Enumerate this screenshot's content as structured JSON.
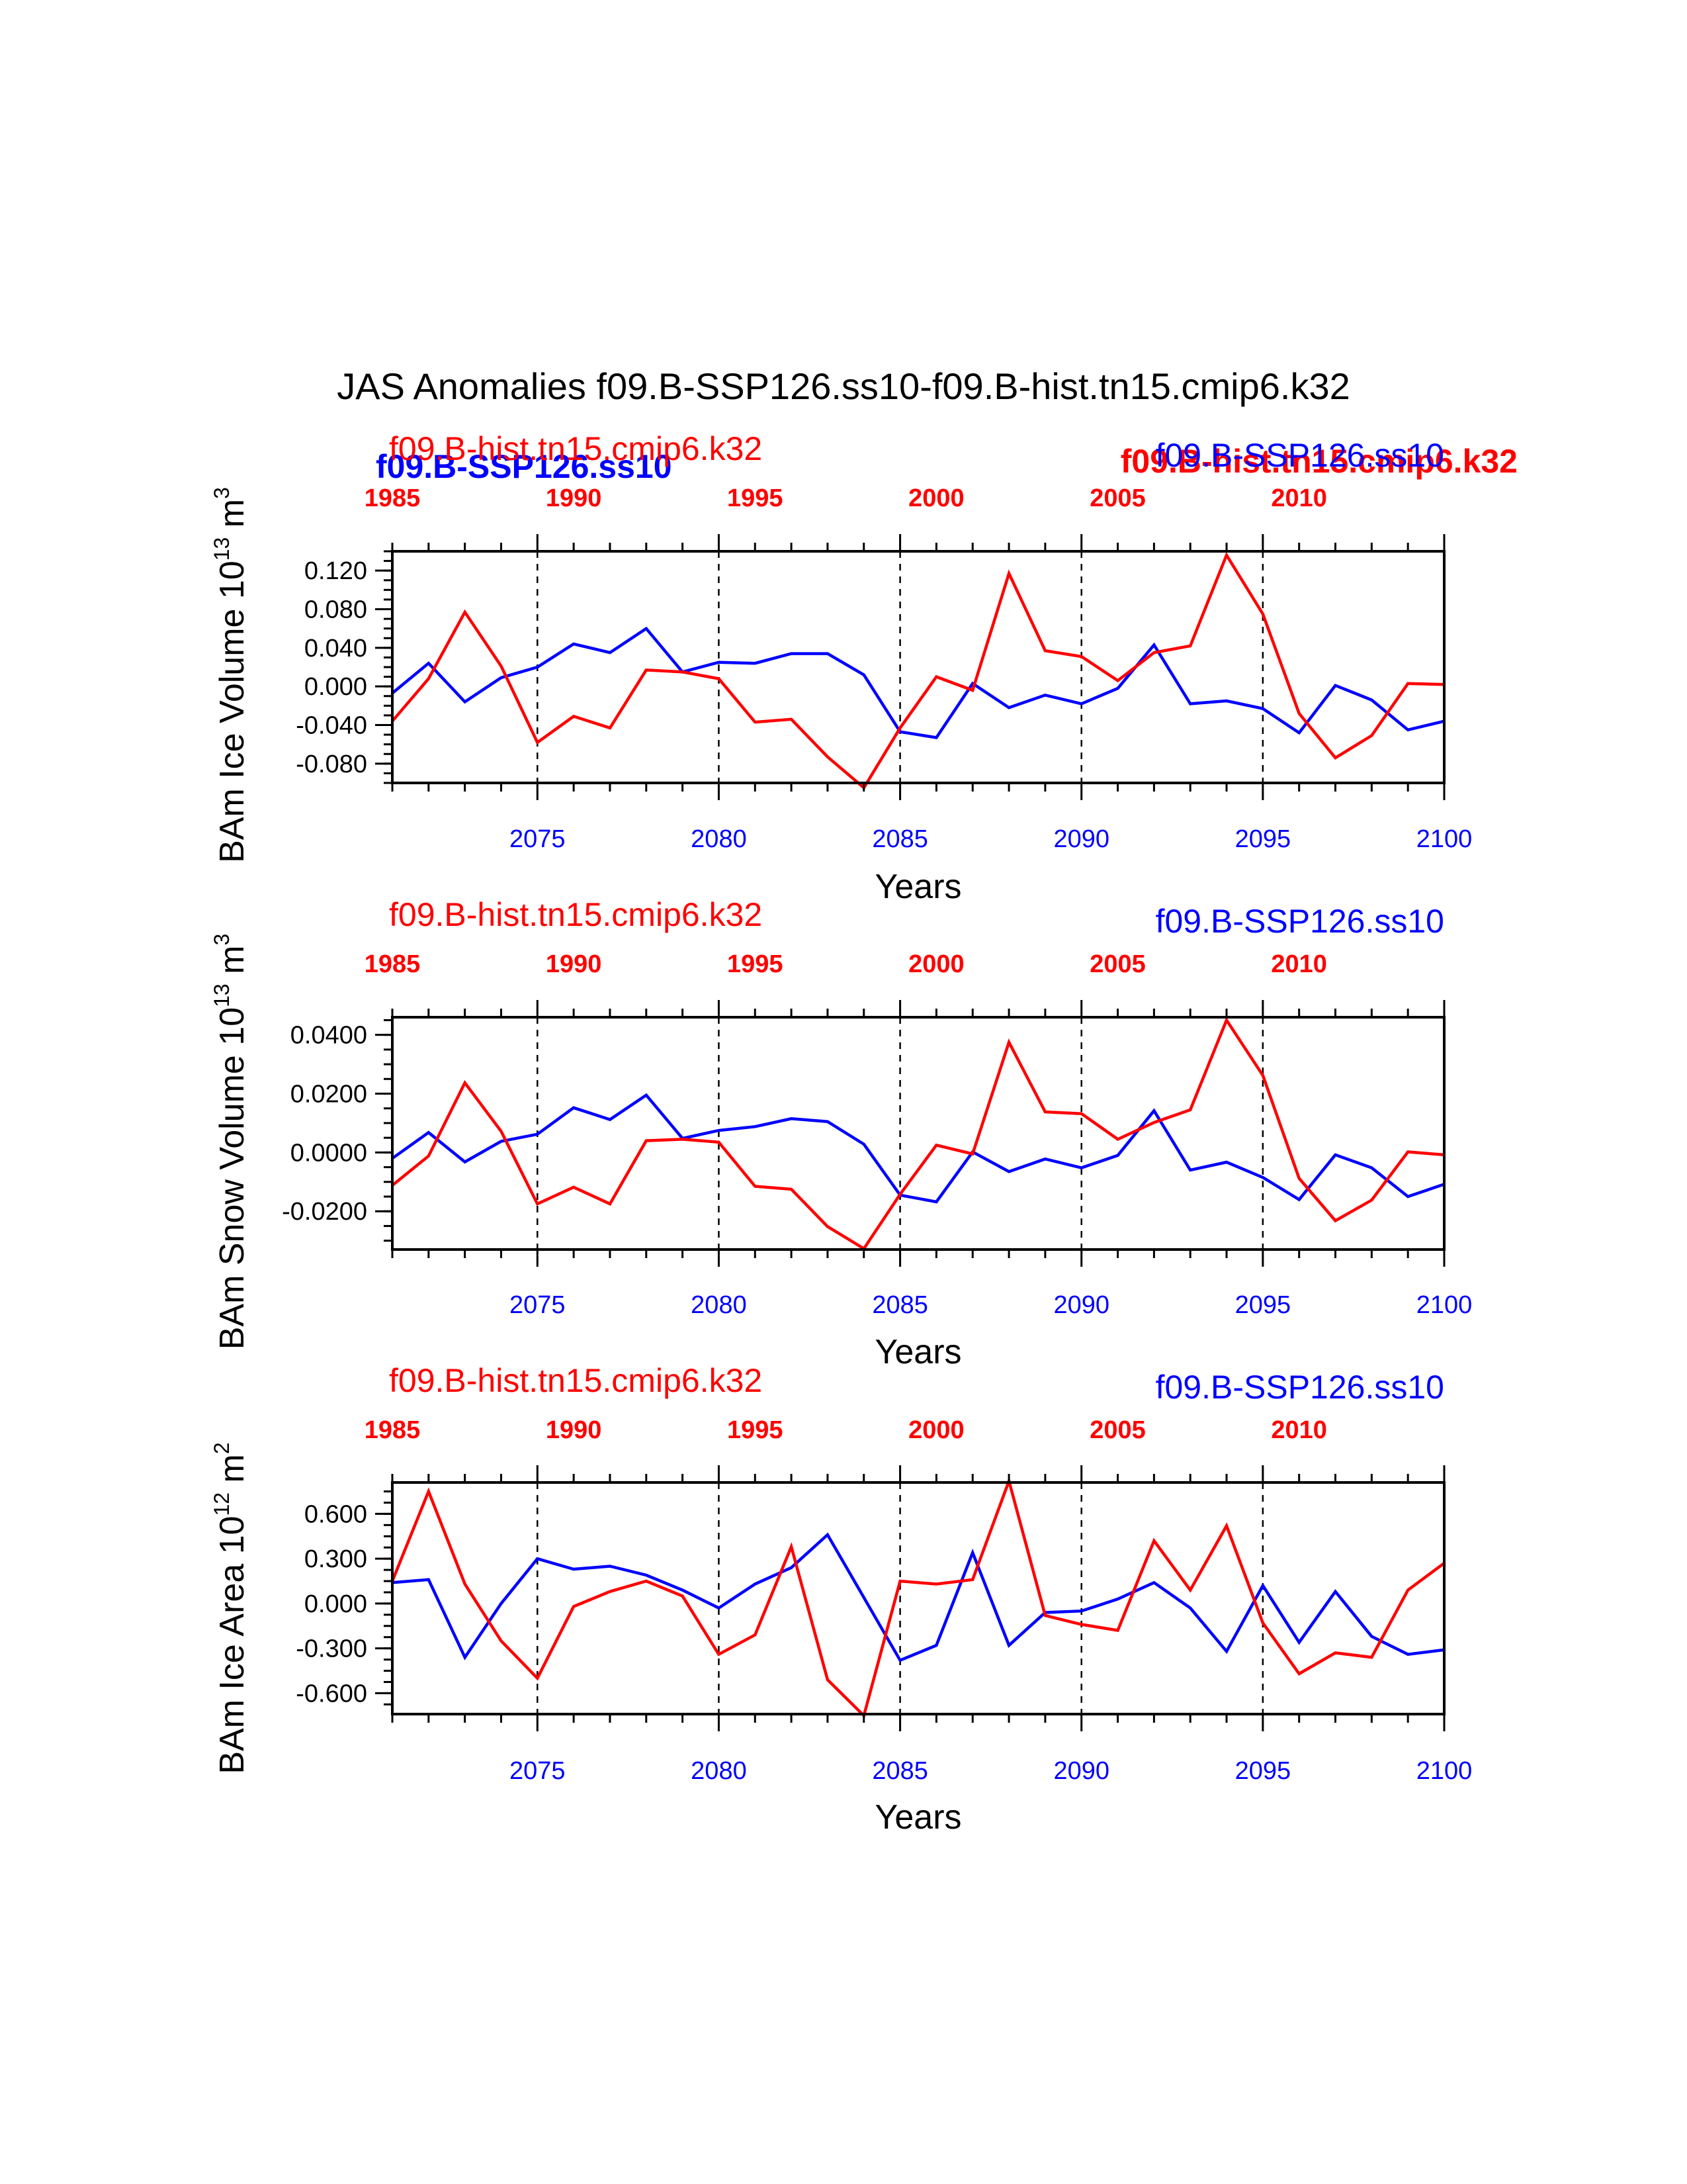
{
  "title": "JAS Anomalies f09.B-SSP126.ss10-f09.B-hist.tn15.cmip6.k32",
  "colors": {
    "case1": "#0000ff",
    "case2": "#ff0000",
    "axis": "#000000"
  },
  "overlay_labels": {
    "case1_bold": "f09.B-SSP126.ss10",
    "case2_bold": "f09.B-hist.tn15.cmip6.k32"
  },
  "chart_data": [
    {
      "type": "line",
      "ylabel": "BAm Ice Volume 10",
      "ylabel_exp": "13",
      "ylabel_unit": " m",
      "ylabel_unit_exp": "3",
      "xlabel": "Years",
      "legend_left": "f09.B-hist.tn15.cmip6.k32",
      "legend_right": "f09.B-SSP126.ss10",
      "xlim": [
        2071,
        2100
      ],
      "ylim": [
        -0.1,
        0.14
      ],
      "ytick_values": [
        -0.08,
        -0.04,
        0.0,
        0.04,
        0.08,
        0.12
      ],
      "ytick_labels": [
        "-0.080",
        "-0.040",
        "0.000",
        "0.040",
        "0.080",
        "0.120"
      ],
      "ytick_minor_step": 0.01,
      "bottom_tick_values": [
        2075,
        2080,
        2085,
        2090,
        2095,
        2100
      ],
      "bottom_tick_labels": [
        "2075",
        "2080",
        "2085",
        "2090",
        "2095",
        "2100"
      ],
      "top_tick_labels": [
        "1985",
        "1990",
        "1995",
        "2000",
        "2005",
        "2010"
      ],
      "dashed_x": [
        2075,
        2080,
        2085,
        2090,
        2095
      ],
      "x": [
        2071,
        2072,
        2073,
        2074,
        2075,
        2076,
        2077,
        2078,
        2079,
        2080,
        2081,
        2082,
        2083,
        2084,
        2085,
        2086,
        2087,
        2088,
        2089,
        2090,
        2091,
        2092,
        2093,
        2094,
        2095,
        2096,
        2097,
        2098,
        2099,
        2100
      ],
      "series": [
        {
          "name": "f09.B-SSP126.ss10",
          "color": "#0000ff",
          "values": [
            -0.007,
            0.024,
            -0.016,
            0.009,
            0.02,
            0.044,
            0.035,
            0.06,
            0.015,
            0.025,
            0.024,
            0.034,
            0.034,
            0.012,
            -0.047,
            -0.053,
            0.003,
            -0.022,
            -0.009,
            -0.018,
            -0.002,
            0.043,
            -0.018,
            -0.015,
            -0.023,
            -0.048,
            0.001,
            -0.014,
            -0.045,
            -0.036
          ]
        },
        {
          "name": "f09.B-hist.tn15.cmip6.k32",
          "color": "#ff0000",
          "values": [
            -0.036,
            0.008,
            0.077,
            0.021,
            -0.058,
            -0.031,
            -0.043,
            0.017,
            0.015,
            0.008,
            -0.037,
            -0.034,
            -0.073,
            -0.105,
            -0.043,
            0.01,
            -0.004,
            0.117,
            0.037,
            0.031,
            0.006,
            0.035,
            0.042,
            0.136,
            0.075,
            -0.028,
            -0.074,
            -0.051,
            0.003,
            0.002
          ]
        }
      ]
    },
    {
      "type": "line",
      "ylabel": "BAm Snow Volume 10",
      "ylabel_exp": "13",
      "ylabel_unit": " m",
      "ylabel_unit_exp": "3",
      "xlabel": "Years",
      "legend_left": "f09.B-hist.tn15.cmip6.k32",
      "legend_right": "f09.B-SSP126.ss10",
      "xlim": [
        2071,
        2100
      ],
      "ylim": [
        -0.033,
        0.046
      ],
      "ytick_values": [
        -0.02,
        0.0,
        0.02,
        0.04
      ],
      "ytick_labels": [
        "-0.0200",
        "0.0000",
        "0.0200",
        "0.0400"
      ],
      "ytick_minor_step": 0.005,
      "bottom_tick_values": [
        2075,
        2080,
        2085,
        2090,
        2095,
        2100
      ],
      "bottom_tick_labels": [
        "2075",
        "2080",
        "2085",
        "2090",
        "2095",
        "2100"
      ],
      "top_tick_labels": [
        "1985",
        "1990",
        "1995",
        "2000",
        "2005",
        "2010"
      ],
      "dashed_x": [
        2075,
        2080,
        2085,
        2090,
        2095
      ],
      "x": [
        2071,
        2072,
        2073,
        2074,
        2075,
        2076,
        2077,
        2078,
        2079,
        2080,
        2081,
        2082,
        2083,
        2084,
        2085,
        2086,
        2087,
        2088,
        2089,
        2090,
        2091,
        2092,
        2093,
        2094,
        2095,
        2096,
        2097,
        2098,
        2099,
        2100
      ],
      "series": [
        {
          "name": "f09.B-SSP126.ss10",
          "color": "#0000ff",
          "values": [
            -0.002,
            0.0068,
            -0.0032,
            0.0038,
            0.0062,
            0.0152,
            0.0112,
            0.0195,
            0.0048,
            0.0075,
            0.0088,
            0.0115,
            0.0105,
            0.0028,
            -0.0145,
            -0.0168,
            0.0002,
            -0.0065,
            -0.0022,
            -0.0052,
            -0.001,
            0.0142,
            -0.006,
            -0.0033,
            -0.0085,
            -0.016,
            -0.0008,
            -0.0052,
            -0.015,
            -0.0108
          ]
        },
        {
          "name": "f09.B-hist.tn15.cmip6.k32",
          "color": "#ff0000",
          "values": [
            -0.0112,
            -0.0012,
            0.0237,
            0.0072,
            -0.0175,
            -0.0118,
            -0.0175,
            0.004,
            0.0045,
            0.0035,
            -0.0115,
            -0.0125,
            -0.0252,
            -0.0327,
            -0.0142,
            0.0025,
            -0.0005,
            0.0375,
            0.0138,
            0.0132,
            0.0045,
            0.0102,
            0.0145,
            0.045,
            0.0262,
            -0.0088,
            -0.0232,
            -0.0162,
            0.0002,
            -0.0008
          ]
        }
      ]
    },
    {
      "type": "line",
      "ylabel": "BAm Ice Area 10",
      "ylabel_exp": "12",
      "ylabel_unit": " m",
      "ylabel_unit_exp": "2",
      "xlabel": "Years",
      "legend_left": "f09.B-hist.tn15.cmip6.k32",
      "legend_right": "f09.B-SSP126.ss10",
      "xlim": [
        2071,
        2100
      ],
      "ylim": [
        -0.74,
        0.81
      ],
      "ytick_values": [
        -0.6,
        -0.3,
        0.0,
        0.3,
        0.6
      ],
      "ytick_labels": [
        "-0.600",
        "-0.300",
        "0.000",
        "0.300",
        "0.600"
      ],
      "ytick_minor_step": 0.075,
      "bottom_tick_values": [
        2075,
        2080,
        2085,
        2090,
        2095,
        2100
      ],
      "bottom_tick_labels": [
        "2075",
        "2080",
        "2085",
        "2090",
        "2095",
        "2100"
      ],
      "top_tick_labels": [
        "1985",
        "1990",
        "1995",
        "2000",
        "2005",
        "2010"
      ],
      "dashed_x": [
        2075,
        2080,
        2085,
        2090,
        2095
      ],
      "x": [
        2071,
        2072,
        2073,
        2074,
        2075,
        2076,
        2077,
        2078,
        2079,
        2080,
        2081,
        2082,
        2083,
        2084,
        2085,
        2086,
        2087,
        2088,
        2089,
        2090,
        2091,
        2092,
        2093,
        2094,
        2095,
        2096,
        2097,
        2098,
        2099,
        2100
      ],
      "series": [
        {
          "name": "f09.B-SSP126.ss10",
          "color": "#0000ff",
          "values": [
            0.14,
            0.16,
            -0.36,
            0.0,
            0.3,
            0.23,
            0.25,
            0.19,
            0.09,
            -0.03,
            0.13,
            0.24,
            0.46,
            0.04,
            -0.38,
            -0.28,
            0.34,
            -0.28,
            -0.06,
            -0.05,
            0.03,
            0.14,
            -0.03,
            -0.32,
            0.12,
            -0.26,
            0.08,
            -0.22,
            -0.34,
            -0.31
          ]
        },
        {
          "name": "f09.B-hist.tn15.cmip6.k32",
          "color": "#ff0000",
          "values": [
            0.15,
            0.75,
            0.13,
            -0.25,
            -0.5,
            -0.02,
            0.08,
            0.15,
            0.05,
            -0.34,
            -0.21,
            0.38,
            -0.51,
            -0.75,
            0.15,
            0.13,
            0.16,
            0.82,
            -0.08,
            -0.14,
            -0.18,
            0.42,
            0.09,
            0.52,
            -0.13,
            -0.47,
            -0.33,
            -0.36,
            0.09,
            0.27
          ]
        }
      ]
    }
  ]
}
